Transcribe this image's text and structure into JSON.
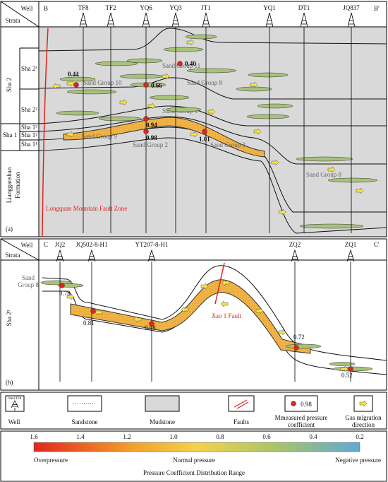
{
  "panel_a": {
    "label": "(a)",
    "header": {
      "well": "Well",
      "strata": "Strata"
    },
    "section_start": "B",
    "section_end": "B'",
    "wells": [
      "TF8",
      "TF2",
      "YQ6",
      "YQ3",
      "JT1",
      "YQ1",
      "DT1",
      "JQ837"
    ],
    "member_top": "Sha 2",
    "member_bottom": "Sha 1",
    "strata": [
      "Sha 2³",
      "Sha 2²",
      "Sha 1³",
      "Sha 1²",
      "Sha 1¹"
    ],
    "formation": [
      "Lianggaoshan",
      "Formation"
    ],
    "sand_groups": [
      "Sand Group 11",
      "Sand Group 10",
      "Sand Group 8",
      "Sand Group 4",
      "Sand Group 9",
      "Sand Group 2",
      "Sand Group 3",
      "Sand Group 8"
    ],
    "pressures": [
      "0.44",
      "0.66",
      "0.40",
      "0.94",
      "0.98",
      "1.01"
    ],
    "fault": "Longquan Mountain Fault Zone"
  },
  "panel_b": {
    "label": "(b)",
    "header": {
      "well": "Well",
      "strata": "Strata"
    },
    "section_start": "C",
    "section_end": "C'",
    "wells": [
      "JQ2",
      "JQ502-8-H1",
      "YT207-8-H1",
      "ZQ2",
      "ZQ1"
    ],
    "strata": "Sha 2³",
    "sand_group": [
      "Sand",
      "Group 8"
    ],
    "pressures": [
      "0.78",
      "0.81",
      "0.98",
      "0.72",
      "0.52"
    ],
    "fault": "Jiao 1 Fault"
  },
  "legend": {
    "well_icon": "Well TF8",
    "items": [
      "Well",
      "Sandstone",
      "Mudstone",
      "Faults",
      [
        "Mmeasured pressure",
        "coefficient"
      ],
      [
        "Gas migration",
        "direction"
      ]
    ],
    "sample_value": "0.98"
  },
  "colorbar": {
    "ticks": [
      "1.6",
      "1.4",
      "1.2",
      "1.0",
      "0.8",
      "0.6",
      "0.4",
      "0.2"
    ],
    "ranges": [
      "Overpressure",
      "Normal pressure",
      "Negative pressure"
    ],
    "title": "Pressure Coefficient Distribution Range"
  }
}
